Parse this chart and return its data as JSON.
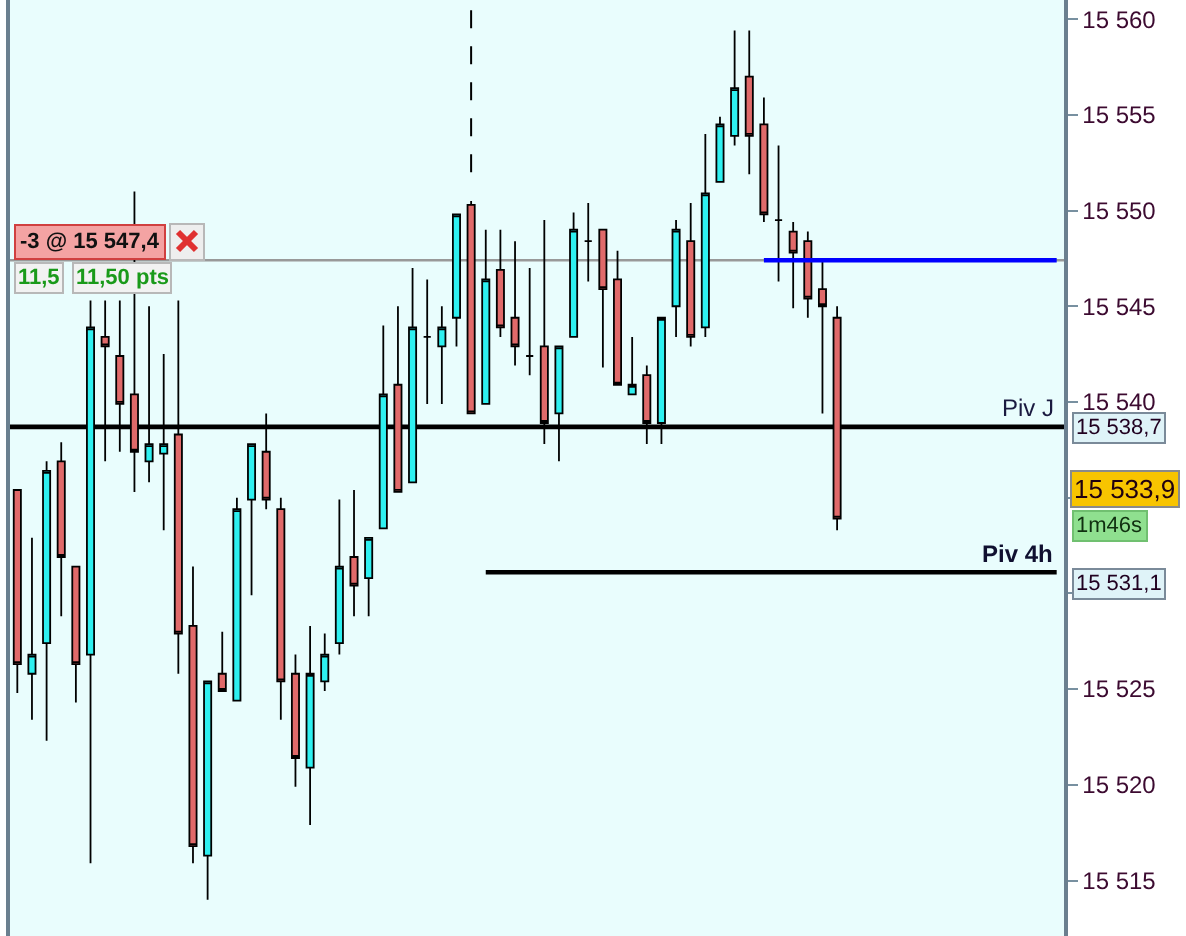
{
  "chart_data": {
    "type": "candlestick",
    "categories": [
      null,
      null,
      null,
      null,
      null,
      null,
      null,
      null,
      null,
      null,
      null,
      null,
      null,
      null,
      null,
      null,
      null,
      null,
      null,
      null,
      null,
      null,
      null,
      null,
      null,
      null,
      null,
      null,
      null,
      null,
      null,
      null,
      null,
      null,
      null,
      null,
      null,
      null,
      null,
      null,
      null,
      null,
      null,
      null,
      null,
      null,
      null,
      null,
      null,
      null,
      null,
      null,
      null,
      null,
      null,
      null,
      null,
      null,
      null,
      null,
      null,
      null,
      null,
      null,
      null,
      null,
      null,
      null,
      null,
      null,
      null,
      null
    ],
    "ohlc": [
      [
        15535.4,
        15535.4,
        15524.8,
        15526.3
      ],
      [
        15525.8,
        15532.9,
        15523.4,
        15526.8
      ],
      [
        15527.4,
        15536.9,
        15522.3,
        15536.4
      ],
      [
        15536.9,
        15537.9,
        15528.8,
        15531.9
      ],
      [
        15531.4,
        15531.4,
        15524.3,
        15526.3
      ],
      [
        15526.8,
        15545.3,
        15515.9,
        15543.9
      ],
      [
        15543.4,
        15545.3,
        15536.9,
        15542.9
      ],
      [
        15542.4,
        15545.3,
        15537.4,
        15539.9
      ],
      [
        15540.4,
        15551.0,
        15535.3,
        15537.4
      ],
      [
        15536.9,
        15545.0,
        15535.8,
        15537.8
      ],
      [
        15537.3,
        15542.5,
        15533.3,
        15537.8
      ],
      [
        15538.3,
        15545.3,
        15525.8,
        15527.9
      ],
      [
        15528.3,
        15531.4,
        15515.9,
        15516.8
      ],
      [
        15516.3,
        15525.4,
        15514.0,
        15525.4
      ],
      [
        15525.8,
        15528.0,
        15524.9,
        15524.9
      ],
      [
        15524.4,
        15535.0,
        15524.4,
        15534.4
      ],
      [
        15534.9,
        15537.8,
        15529.9,
        15537.8
      ],
      [
        15537.4,
        15539.4,
        15534.4,
        15534.9
      ],
      [
        15534.4,
        15535.0,
        15523.4,
        15525.4
      ],
      [
        15525.8,
        15526.8,
        15519.9,
        15521.4
      ],
      [
        15520.9,
        15528.3,
        15517.9,
        15525.8
      ],
      [
        15525.4,
        15527.9,
        15524.9,
        15526.8
      ],
      [
        15527.4,
        15534.9,
        15526.8,
        15531.4
      ],
      [
        15531.9,
        15535.4,
        15528.8,
        15530.4
      ],
      [
        15530.8,
        15532.9,
        15528.8,
        15532.9
      ],
      [
        15533.4,
        15544.0,
        15533.4,
        15540.4
      ],
      [
        15540.9,
        15545.0,
        15535.3,
        15535.3
      ],
      [
        15535.8,
        15547.0,
        15535.8,
        15543.9
      ],
      [
        15543.4,
        15546.4,
        15539.9,
        15543.4
      ],
      [
        15542.9,
        15545.0,
        15539.9,
        15543.9
      ],
      [
        15544.4,
        15549.8,
        15542.9,
        15549.8
      ],
      [
        15550.3,
        15550.5,
        15539.4,
        15539.4
      ],
      [
        15539.9,
        15549.0,
        15539.9,
        15546.4
      ],
      [
        15546.9,
        15549.0,
        15543.4,
        15543.9
      ],
      [
        15544.4,
        15548.4,
        15541.9,
        15542.9
      ],
      [
        15542.4,
        15547.0,
        15541.4,
        15542.4
      ],
      [
        15542.9,
        15549.5,
        15537.8,
        15538.9
      ],
      [
        15539.4,
        15542.9,
        15536.9,
        15542.9
      ],
      [
        15543.4,
        15549.9,
        15543.4,
        15549.0
      ],
      [
        15548.4,
        15550.4,
        15546.3,
        15548.4
      ],
      [
        15549.0,
        15549.0,
        15541.8,
        15545.9
      ],
      [
        15546.4,
        15547.9,
        15540.9,
        15540.9
      ],
      [
        15540.4,
        15543.4,
        15540.4,
        15540.9
      ],
      [
        15541.4,
        15541.9,
        15537.8,
        15538.9
      ],
      [
        15538.9,
        15544.4,
        15537.8,
        15544.4
      ],
      [
        15545.0,
        15549.5,
        15543.4,
        15549.0
      ],
      [
        15548.4,
        15550.4,
        15542.9,
        15543.4
      ],
      [
        15543.9,
        15554.0,
        15543.4,
        15550.9
      ],
      [
        15551.5,
        15554.9,
        15551.5,
        15554.5
      ],
      [
        15553.9,
        15559.4,
        15553.4,
        15556.4
      ],
      [
        15557.0,
        15559.4,
        15551.9,
        15553.9
      ],
      [
        15554.5,
        15555.9,
        15549.4,
        15549.8
      ],
      [
        15549.5,
        15553.4,
        15546.3,
        15549.5
      ],
      [
        15548.9,
        15549.4,
        15544.9,
        15547.8
      ],
      [
        15548.4,
        15548.9,
        15544.4,
        15545.4
      ],
      [
        15545.9,
        15547.4,
        15539.4,
        15545.0
      ],
      [
        15544.4,
        15545.0,
        15533.3,
        15533.9
      ],
      null,
      null,
      null,
      null,
      null,
      null,
      null,
      null,
      null,
      null,
      null,
      null,
      null,
      null,
      null
    ],
    "colors": [
      "#e06a6a",
      "#2ef0f0",
      "#2ef0f0",
      "#e06a6a",
      "#e06a6a",
      "#2ef0f0",
      "#e06a6a",
      "#e06a6a",
      "#e06a6a",
      "#2ef0f0",
      "#2ef0f0",
      "#e06a6a",
      "#e06a6a",
      "#2ef0f0",
      "#e06a6a",
      "#2ef0f0",
      "#2ef0f0",
      "#e06a6a",
      "#e06a6a",
      "#e06a6a",
      "#2ef0f0",
      "#2ef0f0",
      "#2ef0f0",
      "#e06a6a",
      "#2ef0f0",
      "#2ef0f0",
      "#e06a6a",
      "#2ef0f0",
      "#000000",
      "#2ef0f0",
      "#2ef0f0",
      "#e06a6a",
      "#2ef0f0",
      "#e06a6a",
      "#e06a6a",
      "#000000",
      "#e06a6a",
      "#2ef0f0",
      "#2ef0f0",
      "#000000",
      "#e06a6a",
      "#e06a6a",
      "#2ef0f0",
      "#e06a6a",
      "#2ef0f0",
      "#2ef0f0",
      "#e06a6a",
      "#2ef0f0",
      "#2ef0f0",
      "#2ef0f0",
      "#e06a6a",
      "#e06a6a",
      "#000000",
      "#e06a6a",
      "#e06a6a",
      "#e06a6a",
      "#e06a6a",
      null,
      null,
      null,
      null,
      null,
      null,
      null,
      null,
      null,
      null,
      null,
      null,
      null,
      null,
      null
    ],
    "series": [
      {
        "type": "line",
        "name": "Piv 4h",
        "color": "#000000",
        "values": [
          null,
          null,
          null,
          null,
          null,
          null,
          null,
          null,
          null,
          null,
          null,
          null,
          null,
          null,
          null,
          null,
          null,
          null,
          null,
          null,
          null,
          null,
          null,
          null,
          null,
          null,
          null,
          null,
          null,
          null,
          null,
          null,
          15531.1,
          15531.1,
          15531.1,
          15531.1,
          15531.1,
          15531.1,
          15531.1,
          15531.1,
          15531.1,
          15531.1,
          15531.1,
          15531.1,
          15531.1,
          15531.1,
          15531.1,
          15531.1,
          15531.1,
          15531.1,
          15531.1,
          15531.1,
          15531.1,
          15531.1,
          15531.1,
          15531.1,
          15531.1,
          15531.1,
          15531.1,
          15531.1,
          15531.1,
          15531.1,
          15531.1,
          15531.1,
          15531.1,
          15531.1,
          15531.1,
          15531.1,
          15531.1,
          15531.1,
          15531.1,
          15531.1
        ]
      },
      {
        "type": "line",
        "color": "#0000ff",
        "values": [
          null,
          null,
          null,
          null,
          null,
          null,
          null,
          null,
          null,
          null,
          null,
          null,
          null,
          null,
          null,
          null,
          null,
          null,
          null,
          null,
          null,
          null,
          null,
          null,
          null,
          null,
          null,
          null,
          null,
          null,
          null,
          null,
          null,
          null,
          null,
          null,
          null,
          null,
          null,
          null,
          null,
          null,
          null,
          null,
          null,
          null,
          null,
          null,
          null,
          null,
          null,
          15547.4,
          15547.4,
          15547.4,
          15547.4,
          15547.4,
          15547.4,
          15547.4,
          15547.4,
          15547.4,
          15547.4,
          15547.4,
          15547.4,
          15547.4,
          15547.4,
          15547.4,
          15547.4,
          15547.4,
          15547.4,
          15547.4,
          15547.4,
          15547.4
        ]
      }
    ],
    "ylim": [
      15512.1,
      15561.0
    ],
    "yticks": [
      {
        "value": 15515,
        "label": "15 515"
      },
      {
        "value": 15520,
        "label": "15 520"
      },
      {
        "value": 15525,
        "label": "15 525"
      },
      {
        "value": 15530,
        "label": null
      },
      {
        "value": 15535,
        "label": null
      },
      {
        "value": 15540,
        "label": "15 540"
      },
      {
        "value": 15545,
        "label": "15 545"
      },
      {
        "value": 15550,
        "label": "15 550"
      },
      {
        "value": 15555,
        "label": "15 555"
      },
      {
        "value": 15560,
        "label": "15 560"
      }
    ],
    "tick_labels": "y",
    "ref_lines": [
      {
        "axis": "y",
        "value": 15538.7,
        "label": "Piv J",
        "color": "#000000"
      },
      {
        "axis": "y",
        "value": 15547.4,
        "label": "-3 @ 15 547,4",
        "color": "#999999"
      }
    ],
    "annotations": [
      "11,5",
      "11,50 pts",
      "15 538,7",
      "15 533,9",
      "1m46s",
      "15 531,1"
    ]
  }
}
